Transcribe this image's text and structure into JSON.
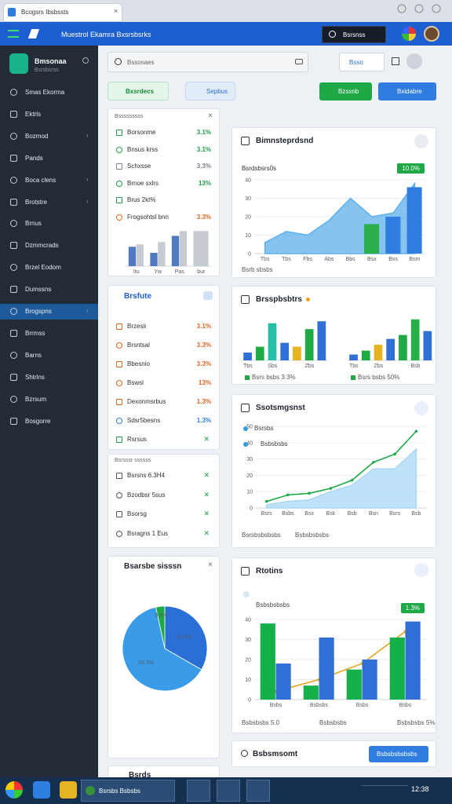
{
  "browser": {
    "tab_title": "Bcogsrs Ibsbssts"
  },
  "app_bar": {
    "title": "Muestrol Ekamra Bxsrsbsrks",
    "account": "Bsrsnss"
  },
  "sidebar": {
    "brand": "Bmsonaa",
    "brand_sub": "Bsrsbsrss",
    "active_item": 10,
    "items": [
      "Smas Ekorma",
      "Ektrls",
      "Bozmod",
      "Pands",
      "Boca clens",
      "Brotstre",
      "Brnus",
      "Dzmmcrads",
      "Brzel Eodom",
      "Dumssns",
      "Brogspns",
      "Brrmss",
      "Barns",
      "Shtrlns",
      "Bzrsum",
      "Bosgorre"
    ]
  },
  "toolbar": {
    "search": "Bssosaes",
    "select": "Bsso",
    "filter": "Bxsrdecs",
    "tab": "Sepbus",
    "primary_button": "Bzsxnb",
    "secondary_button": "Bxidabre"
  },
  "left_panels": [
    {
      "title": "Bsssssssss",
      "rows": [
        {
          "label": "Borsonme",
          "value": "3.1%",
          "color": "#1f9d4a"
        },
        {
          "label": "Bnsus krss",
          "value": "3.1%",
          "color": "#1f9d4a"
        },
        {
          "label": "Schxsse",
          "value": "3.3%",
          "color": "#7a808a"
        },
        {
          "label": "Brnoe sxlrs",
          "value": "13%",
          "color": "#1f9d4a"
        },
        {
          "label": "Brus 2kt%",
          "color": "#1f9d4a"
        },
        {
          "label": "Frogsohtsl bnn",
          "value": "3.3%",
          "color": "#e0661f"
        }
      ],
      "chart": {
        "type": "bar",
        "categories": [
          "Itu",
          "Yw",
          "Pas",
          "bur"
        ],
        "ylim": [
          0,
          70
        ],
        "series": [
          {
            "color": "#4f79c0",
            "values": [
              32,
              22,
              50,
              null
            ]
          },
          {
            "color": "#c6cbd2",
            "values": [
              36,
              40,
              58,
              58
            ]
          }
        ]
      }
    },
    {
      "title": "Brsfute",
      "rows": [
        {
          "label": "Brzesii",
          "value": "3.1%",
          "color": "#e0661f"
        },
        {
          "label": "Brsntsal",
          "value": "3.3%",
          "color": "#e0661f"
        },
        {
          "label": "Bbesnio",
          "value": "3.3%",
          "color": "#e0661f"
        },
        {
          "label": "Bswsl",
          "value": "13%",
          "color": "#e0661f"
        },
        {
          "label": "Dexonmsrbus",
          "value": "1.3%",
          "color": "#e0661f"
        },
        {
          "label": "Sdsr5besns",
          "value": "1.3%",
          "color": "#2f7de1"
        },
        {
          "label": "Rsrsus",
          "color": "#1f9d4a"
        }
      ]
    },
    {
      "title": "Bsrsssr ssssss",
      "rows": [
        {
          "label": "Bsrsns 6.3H4"
        },
        {
          "label": "Bzodbsr 5sus"
        },
        {
          "label": "Bsorsg"
        },
        {
          "label": "Bsragns 1 Eus"
        }
      ]
    },
    {
      "title": "Bsarsbe sisssn",
      "chart": {
        "type": "pie",
        "values": [
          33.3,
          63.3,
          3.4
        ],
        "value_labels": [
          "33.3%",
          "63.3%",
          "3.4%"
        ],
        "colors": [
          "#2a6fd6",
          "#3a9be8",
          "#1faa46"
        ]
      }
    },
    {
      "title": "Bsrds"
    }
  ],
  "right_panels": [
    {
      "title": "Bimnsteprdsnd",
      "legend": "Bsrdsbsrs0s",
      "badge": "10.0%",
      "footer": "Bsrb sbsbs",
      "chart": {
        "type": "combo",
        "categories": [
          "Tbs",
          "Tbs",
          "Fbs",
          "Abs",
          "Bbs",
          "Bsx",
          "Bxs",
          "Bsm"
        ],
        "ylim": [
          0,
          40
        ],
        "yticks": [
          0,
          10,
          20,
          30,
          40
        ],
        "grid": true,
        "series": [
          {
            "type": "area",
            "color": "#5db0ea",
            "values": [
              6,
              12,
              10,
              18,
              30,
              20,
              22,
              38
            ]
          },
          {
            "type": "bar",
            "color": "#2ab04a",
            "values": [
              null,
              null,
              null,
              null,
              null,
              16,
              null,
              null
            ]
          },
          {
            "type": "bar",
            "color": "#2f7de1",
            "values": [
              null,
              null,
              null,
              null,
              null,
              null,
              20,
              36
            ]
          }
        ]
      }
    },
    {
      "title": "Brsspbsbtrs",
      "charts": [
        {
          "type": "bar",
          "categories": [
            "Tbs",
            null,
            "Sbs",
            null,
            null,
            "Zbs",
            null
          ],
          "ylim": [
            0,
            45
          ],
          "footer": "Bsrs bsbs 3.3%",
          "colors": [
            "#2f6fd6",
            "#1faa46",
            "#26c0a8",
            "#2f6fd6",
            "#e6b422",
            "#1faa46",
            "#2f6fd6"
          ],
          "values": [
            8,
            14,
            38,
            18,
            14,
            32,
            40
          ]
        },
        {
          "type": "bar",
          "categories": [
            "Tbs",
            null,
            "Zbs",
            null,
            null,
            "Bsb",
            null
          ],
          "ylim": [
            0,
            45
          ],
          "footer": "Bsrs bsbs 50%",
          "colors": [
            "#2f6fd6",
            "#1faa46",
            "#e6b422",
            "#2f6fd6",
            "#1faa46",
            "#26b04a",
            "#2f6fd6"
          ],
          "values": [
            6,
            10,
            16,
            22,
            26,
            42,
            30
          ]
        }
      ]
    },
    {
      "title": "Ssotsmgsnst",
      "legends": [
        {
          "label": "Bsrsbs",
          "color": "#2f9be0"
        },
        {
          "label": "Bsbsbsbs",
          "color": "#2f9be0"
        }
      ],
      "footers": [
        "Bsrsbsbsbsbs",
        "Bsbsbsbsbs"
      ],
      "chart": {
        "type": "combo",
        "categories": [
          "Bsrs",
          "Bsbs",
          "Bsx",
          "Bsk",
          "Bsb",
          "Bsn",
          "Bsrs",
          "Bsb"
        ],
        "ylim": [
          0,
          50
        ],
        "yticks": [
          0,
          10,
          20,
          30,
          40,
          50
        ],
        "grid": true,
        "series": [
          {
            "type": "area",
            "color": "#a9d8f5",
            "values": [
              2,
              4,
              5,
              10,
              14,
              24,
              24,
              36
            ]
          },
          {
            "type": "line",
            "color": "#1faa46",
            "values": [
              4,
              8,
              9,
              12,
              17,
              28,
              33,
              47
            ]
          }
        ]
      }
    },
    {
      "title": "Rtotins",
      "legend": "Bsbsbsbsbs",
      "badge": "1.3%",
      "footers": [
        "Bsbsbsbs 5.0",
        "Bsbsbsbs",
        "Bsbsbsbs 5%"
      ],
      "chart": {
        "type": "combo",
        "categories": [
          "Bsbs",
          "Bsbsbs",
          "Bsbs",
          "Bsbs"
        ],
        "ylim": [
          0,
          40
        ],
        "yticks": [
          0,
          10,
          20,
          30,
          40
        ],
        "grid": true,
        "series": [
          {
            "type": "bar",
            "color": "#16b04a",
            "values": [
              38,
              7,
              15,
              31
            ]
          },
          {
            "type": "bar",
            "color": "#2f6fd6",
            "values": [
              18,
              31,
              20,
              39
            ]
          },
          {
            "type": "line",
            "color": "#e8a21a",
            "values": [
              4,
              10,
              18,
              34
            ]
          }
        ]
      }
    },
    {
      "title": "Bsbsmsomt",
      "button": "Bsbsbsbsbsbs"
    }
  ],
  "taskbar": {
    "window": "Bsrsbs Bsbsbs",
    "clock": "12:38"
  }
}
